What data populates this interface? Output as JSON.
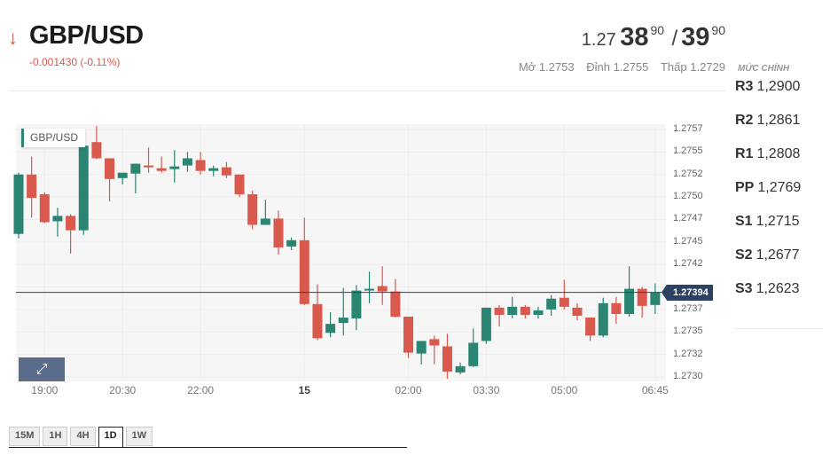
{
  "header": {
    "direction_icon": "arrow-down-icon",
    "pair": "GBP/USD",
    "change": "-0.001430 (-0.11%)",
    "price": {
      "prefix": "1.27",
      "bid_big": "38",
      "bid_small": "90",
      "separator": "/",
      "ask_big": "39",
      "ask_small": "90"
    },
    "open_label": "Mở",
    "open": "1.2753",
    "high_label": "Đỉnh",
    "high": "1.2755",
    "low_label": "Thấp",
    "low": "1.2729"
  },
  "pivots": {
    "title": "MỨC CHÍNH",
    "levels": [
      {
        "name": "R3",
        "value": "1,2900"
      },
      {
        "name": "R2",
        "value": "1,2861"
      },
      {
        "name": "R1",
        "value": "1,2808"
      },
      {
        "name": "PP",
        "value": "1,2769"
      },
      {
        "name": "S1",
        "value": "1,2715"
      },
      {
        "name": "S2",
        "value": "1,2677"
      },
      {
        "name": "S3",
        "value": "1,2623"
      }
    ]
  },
  "chart": {
    "legend": "GBP/USD",
    "expand_icon": "expand-arrows-icon",
    "current_price_label": "1.27394"
  },
  "timeframes": {
    "items": [
      "15M",
      "1H",
      "4H",
      "1D",
      "1W"
    ],
    "active": "1D"
  },
  "colors": {
    "up": "#2a8572",
    "down": "#d9594c",
    "current_line": "#2d4263",
    "accent": "#5b6b8a"
  },
  "chart_data": {
    "type": "candlestick",
    "interval_minutes": 15,
    "first_candle_time": "18:30",
    "y_ticks": [
      "1.2757",
      "1.2755",
      "1.2752",
      "1.2750",
      "1.2747",
      "1.2745",
      "1.2742",
      "1.2737",
      "1.2735",
      "1.2732",
      "1.2730"
    ],
    "ylim": [
      1.273,
      1.27575
    ],
    "x_ticks": [
      {
        "label": "19:00",
        "index": 2
      },
      {
        "label": "20:30",
        "index": 8
      },
      {
        "label": "22:00",
        "index": 14
      },
      {
        "label": "15",
        "index": 22,
        "bold": true
      },
      {
        "label": "02:00",
        "index": 30
      },
      {
        "label": "03:30",
        "index": 36
      },
      {
        "label": "05:00",
        "index": 42
      },
      {
        "label": "06:45",
        "index": 49
      }
    ],
    "current_price": 1.27394,
    "ohlc": [
      [
        1.27459,
        1.27527,
        1.27454,
        1.27525
      ],
      [
        1.27525,
        1.27545,
        1.27477,
        1.27499
      ],
      [
        1.27503,
        1.27505,
        1.27471,
        1.27472
      ],
      [
        1.27473,
        1.27488,
        1.27456,
        1.27479
      ],
      [
        1.27479,
        1.27481,
        1.27437,
        1.27463
      ],
      [
        1.27463,
        1.27557,
        1.27458,
        1.27557
      ],
      [
        1.27561,
        1.27579,
        1.27542,
        1.27543
      ],
      [
        1.27543,
        1.27543,
        1.27495,
        1.2752
      ],
      [
        1.27521,
        1.27527,
        1.27514,
        1.27527
      ],
      [
        1.27526,
        1.27537,
        1.27504,
        1.27537
      ],
      [
        1.27535,
        1.27555,
        1.27527,
        1.27533
      ],
      [
        1.27532,
        1.27545,
        1.27527,
        1.27529
      ],
      [
        1.27531,
        1.27552,
        1.27516,
        1.27534
      ],
      [
        1.27535,
        1.2755,
        1.27528,
        1.27543
      ],
      [
        1.27541,
        1.2755,
        1.27525,
        1.27529
      ],
      [
        1.27529,
        1.27535,
        1.27523,
        1.27532
      ],
      [
        1.27533,
        1.27539,
        1.27521,
        1.27524
      ],
      [
        1.27525,
        1.27525,
        1.275,
        1.27503
      ],
      [
        1.27503,
        1.27507,
        1.27464,
        1.27469
      ],
      [
        1.27469,
        1.27497,
        1.27469,
        1.27476
      ],
      [
        1.27476,
        1.27485,
        1.27436,
        1.27444
      ],
      [
        1.27445,
        1.27455,
        1.27441,
        1.27452
      ],
      [
        1.27452,
        1.27477,
        1.2738,
        1.27381
      ],
      [
        1.27381,
        1.27403,
        1.27341,
        1.27343
      ],
      [
        1.27349,
        1.27372,
        1.27344,
        1.27359
      ],
      [
        1.2736,
        1.27399,
        1.27346,
        1.27366
      ],
      [
        1.27365,
        1.27402,
        1.27352,
        1.27396
      ],
      [
        1.27396,
        1.27417,
        1.27382,
        1.27398
      ],
      [
        1.27401,
        1.27423,
        1.2738,
        1.27395
      ],
      [
        1.27395,
        1.27409,
        1.27366,
        1.27367
      ],
      [
        1.27367,
        1.27367,
        1.27321,
        1.27327
      ],
      [
        1.27326,
        1.2734,
        1.27314,
        1.2734
      ],
      [
        1.27342,
        1.27346,
        1.27314,
        1.27335
      ],
      [
        1.27334,
        1.27348,
        1.27298,
        1.27306
      ],
      [
        1.27305,
        1.27316,
        1.27303,
        1.27312
      ],
      [
        1.27312,
        1.27354,
        1.27311,
        1.27338
      ],
      [
        1.2734,
        1.27377,
        1.27337,
        1.27377
      ],
      [
        1.27377,
        1.2738,
        1.27356,
        1.27369
      ],
      [
        1.27369,
        1.27389,
        1.27365,
        1.27378
      ],
      [
        1.27378,
        1.2738,
        1.27365,
        1.27369
      ],
      [
        1.27369,
        1.27378,
        1.27365,
        1.27374
      ],
      [
        1.27375,
        1.27391,
        1.27368,
        1.27387
      ],
      [
        1.27388,
        1.27408,
        1.27375,
        1.27378
      ],
      [
        1.27377,
        1.27382,
        1.27363,
        1.27368
      ],
      [
        1.27366,
        1.27366,
        1.2734,
        1.27346
      ],
      [
        1.27346,
        1.27388,
        1.27344,
        1.27382
      ],
      [
        1.27382,
        1.27389,
        1.27359,
        1.2737
      ],
      [
        1.2737,
        1.27423,
        1.27367,
        1.27398
      ],
      [
        1.27398,
        1.274,
        1.27366,
        1.27379
      ],
      [
        1.2738,
        1.27404,
        1.2737,
        1.27394
      ]
    ]
  }
}
